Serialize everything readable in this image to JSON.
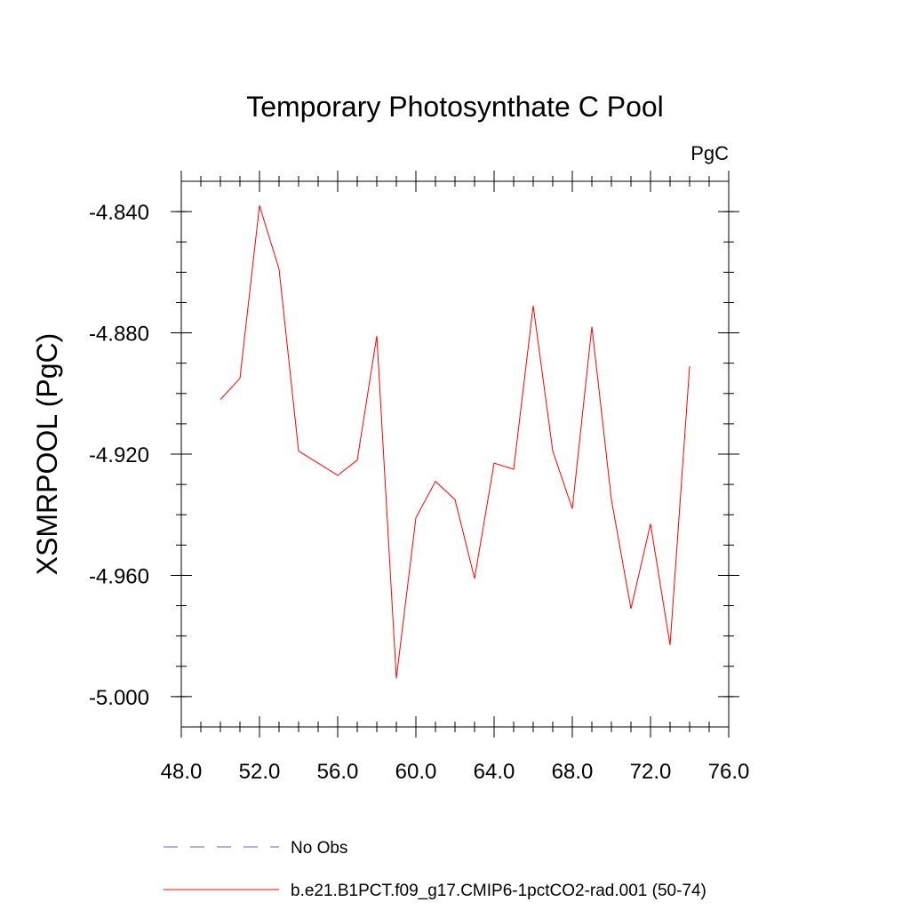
{
  "chart_data": {
    "type": "line",
    "title": "Temporary Photosynthate C Pool",
    "units_label": "PgC",
    "xlabel": "",
    "ylabel": "XSMRPOOL  (PgC)",
    "xlim": [
      48.0,
      76.0
    ],
    "ylim": [
      -5.01,
      -4.83
    ],
    "x_ticks": [
      "48.0",
      "52.0",
      "56.0",
      "60.0",
      "64.0",
      "68.0",
      "72.0",
      "76.0"
    ],
    "y_ticks": [
      "-4.840",
      "-4.880",
      "-4.920",
      "-4.960",
      "-5.000"
    ],
    "grid": false,
    "legend_position": "bottom",
    "series": [
      {
        "name": "b.e21.B1PCT.f09_g17.CMIP6-1pctCO2-rad.001 (50-74)",
        "color": "#ff0000",
        "x": [
          50,
          51,
          52,
          53,
          54,
          55,
          56,
          57,
          58,
          59,
          60,
          61,
          62,
          63,
          64,
          65,
          66,
          67,
          68,
          69,
          70,
          71,
          72,
          73,
          74
        ],
        "y": [
          -4.902,
          -4.895,
          -4.838,
          -4.859,
          -4.919,
          -4.923,
          -4.927,
          -4.922,
          -4.881,
          -4.994,
          -4.941,
          -4.929,
          -4.935,
          -4.961,
          -4.923,
          -4.925,
          -4.871,
          -4.919,
          -4.938,
          -4.878,
          -4.935,
          -4.971,
          -4.943,
          -4.983,
          -4.891
        ]
      }
    ],
    "legend": [
      {
        "label": "No Obs",
        "color": "#6060c0",
        "dash": "dashed"
      },
      {
        "label": "b.e21.B1PCT.f09_g17.CMIP6-1pctCO2-rad.001 (50-74)",
        "color": "#ff0000",
        "dash": "solid"
      }
    ]
  }
}
